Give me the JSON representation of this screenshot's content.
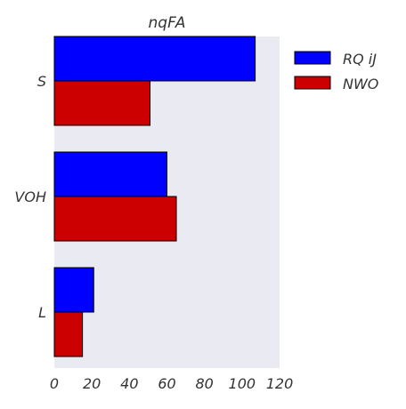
{
  "chart_data": {
    "type": "bar",
    "orientation": "horizontal",
    "title": "nqFA",
    "categories": [
      "S",
      "VOH",
      "L"
    ],
    "series": [
      {
        "name": "RQ iJ",
        "values": [
          107,
          60,
          21
        ],
        "color": "#0000ff"
      },
      {
        "name": "NWO",
        "values": [
          51,
          65,
          15
        ],
        "color": "#cc0000"
      }
    ],
    "xlim": [
      0,
      120
    ],
    "xticks": [
      0,
      20,
      40,
      60,
      80,
      100,
      120
    ],
    "xlabel": "",
    "ylabel": "",
    "grid": false,
    "legend_position": "outside-right",
    "plot_background": "#eaeaf2"
  }
}
